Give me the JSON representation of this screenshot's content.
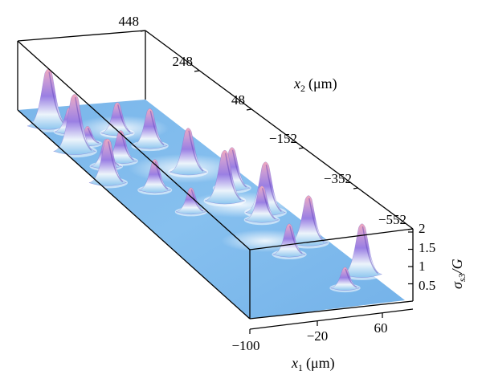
{
  "chart_data": {
    "type": "surface-3d",
    "title": "",
    "x1_axis": {
      "label": "x",
      "subscript": "1",
      "unit": "(μm)",
      "ticks": [
        "−100",
        "−20",
        "60"
      ]
    },
    "x2_axis": {
      "label": "x",
      "subscript": "2",
      "unit": "(μm)",
      "ticks": [
        "448",
        "248",
        "48",
        "−152",
        "−352",
        "−552"
      ]
    },
    "z_axis": {
      "label": "σ",
      "subscript": "s3",
      "suffix": "/G",
      "ticks": [
        "0.5",
        "1",
        "1.5",
        "2"
      ],
      "range": [
        0,
        2
      ]
    },
    "peaks": [
      {
        "x1": -96,
        "x2": 365,
        "z": 1.7
      },
      {
        "x1": -98,
        "x2": 245,
        "z": 1.7
      },
      {
        "x1": -100,
        "x2": 95,
        "z": 1.3
      },
      {
        "x1": -80,
        "x2": 330,
        "z": 0.7
      },
      {
        "x1": -75,
        "x2": 270,
        "z": 0.5
      },
      {
        "x1": -82,
        "x2": 165,
        "z": 0.8
      },
      {
        "x1": -60,
        "x2": 180,
        "z": 0.9
      },
      {
        "x1": -58,
        "x2": 40,
        "z": 0.9
      },
      {
        "x1": -45,
        "x2": -70,
        "z": 0.7
      },
      {
        "x1": -30,
        "x2": 300,
        "z": 0.9
      },
      {
        "x1": -10,
        "x2": 230,
        "z": 1.1
      },
      {
        "x1": 0,
        "x2": 100,
        "z": 1.3
      },
      {
        "x1": 5,
        "x2": -40,
        "z": 1.5
      },
      {
        "x1": 22,
        "x2": -140,
        "z": 1.0
      },
      {
        "x1": 28,
        "x2": 10,
        "z": 1.2
      },
      {
        "x1": 35,
        "x2": -110,
        "z": 1.5
      },
      {
        "x1": 45,
        "x2": -260,
        "z": 1.4
      },
      {
        "x1": 10,
        "x2": -300,
        "z": 0.9
      },
      {
        "x1": 65,
        "x2": -420,
        "z": 1.5
      },
      {
        "x1": 30,
        "x2": -470,
        "z": 0.6
      }
    ]
  }
}
